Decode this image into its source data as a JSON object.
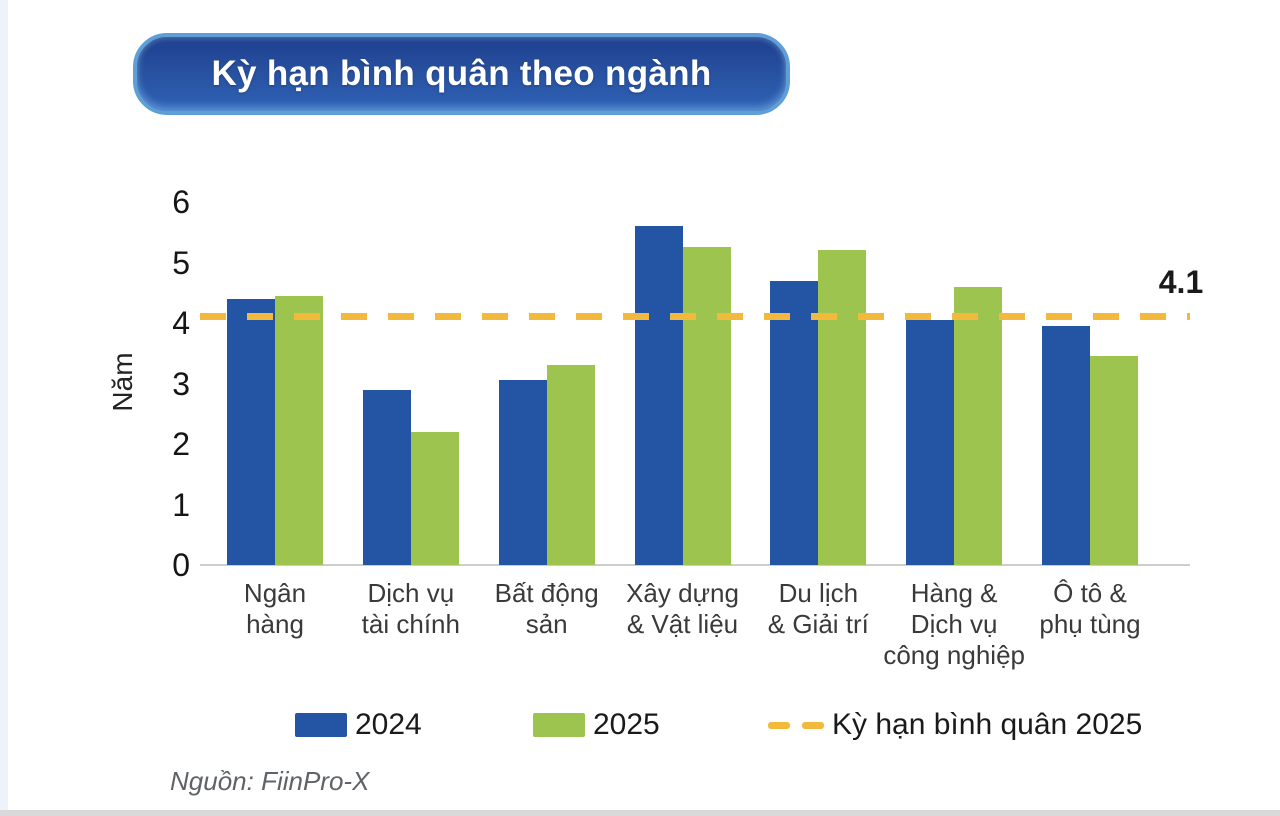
{
  "title": "Kỳ hạn bình quân theo ngành",
  "source": "Nguồn: FiinPro-X",
  "chart_data": {
    "type": "bar",
    "title": "Kỳ hạn bình quân theo ngành",
    "xlabel": "",
    "ylabel": "Năm",
    "ylim": [
      0,
      6
    ],
    "yticks": [
      0,
      1,
      2,
      3,
      4,
      5,
      6
    ],
    "grid": false,
    "legend_position": "bottom",
    "categories": [
      "Ngân\nhàng",
      "Dịch vụ\ntài chính",
      "Bất động\nsản",
      "Xây dựng\n& Vật liệu",
      "Du lịch\n& Giải trí",
      "Hàng &\nDịch vụ\ncông nghiệp",
      "Ô tô &\nphụ tùng"
    ],
    "series": [
      {
        "name": "2024",
        "color": "#2355A4",
        "values": [
          4.4,
          2.9,
          3.05,
          5.6,
          4.7,
          4.05,
          3.95
        ]
      },
      {
        "name": "2025",
        "color": "#9DC44E",
        "values": [
          4.45,
          2.2,
          3.3,
          5.25,
          5.2,
          4.6,
          3.45
        ]
      }
    ],
    "reference_line": {
      "label": "Kỳ hạn bình quân 2025",
      "value": 4.1,
      "display": "4.1",
      "color": "#F2B93C",
      "style": "dashed"
    }
  },
  "colors": {
    "title_fill": "#27509f",
    "title_border": "#5f9fd8",
    "axis_line": "#cdcdcd"
  }
}
